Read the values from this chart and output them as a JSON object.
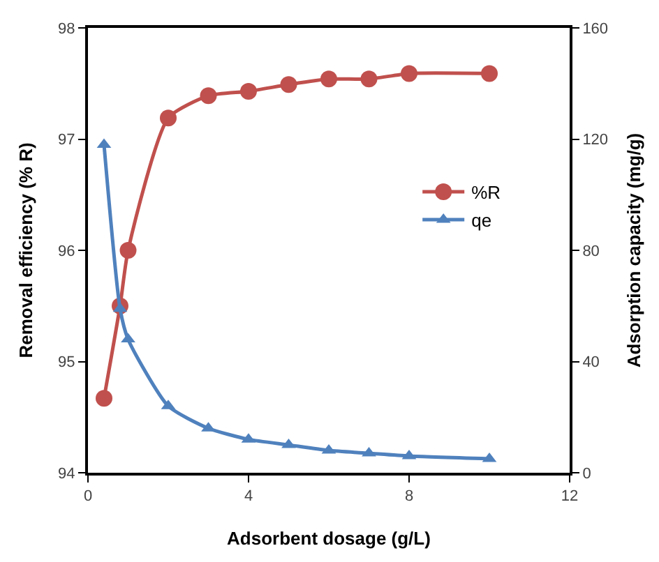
{
  "chart_data": {
    "type": "line",
    "xlabel": "Adsorbent dosage (g/L)",
    "ylabel": "Removal efficiency (% R)",
    "y2label": "Adsorption capacity (mg/g)",
    "x": [
      0.4,
      0.8,
      1,
      2,
      3,
      4,
      5,
      6,
      7,
      8,
      10
    ],
    "series": [
      {
        "name": "%R",
        "color": "#c0504d",
        "marker": "circle",
        "values": [
          94.67,
          95.5,
          96.0,
          97.19,
          97.39,
          97.43,
          97.49,
          97.54,
          97.54,
          97.59,
          97.59
        ]
      },
      {
        "name": "qe",
        "color": "#4f81bd",
        "marker": "triangle",
        "axis": "y2",
        "values": [
          118,
          59,
          48,
          24,
          16,
          12,
          10,
          8,
          7,
          6,
          5
        ]
      }
    ],
    "xlim": [
      0,
      12
    ],
    "xticks": [
      0,
      4,
      8,
      12
    ],
    "ylim": [
      94,
      98
    ],
    "yticks": [
      94,
      95,
      96,
      97,
      98
    ],
    "y2lim": [
      0,
      160
    ],
    "y2ticks": [
      0,
      40,
      80,
      120,
      160
    ],
    "legend": "right",
    "line_style": "solid"
  }
}
